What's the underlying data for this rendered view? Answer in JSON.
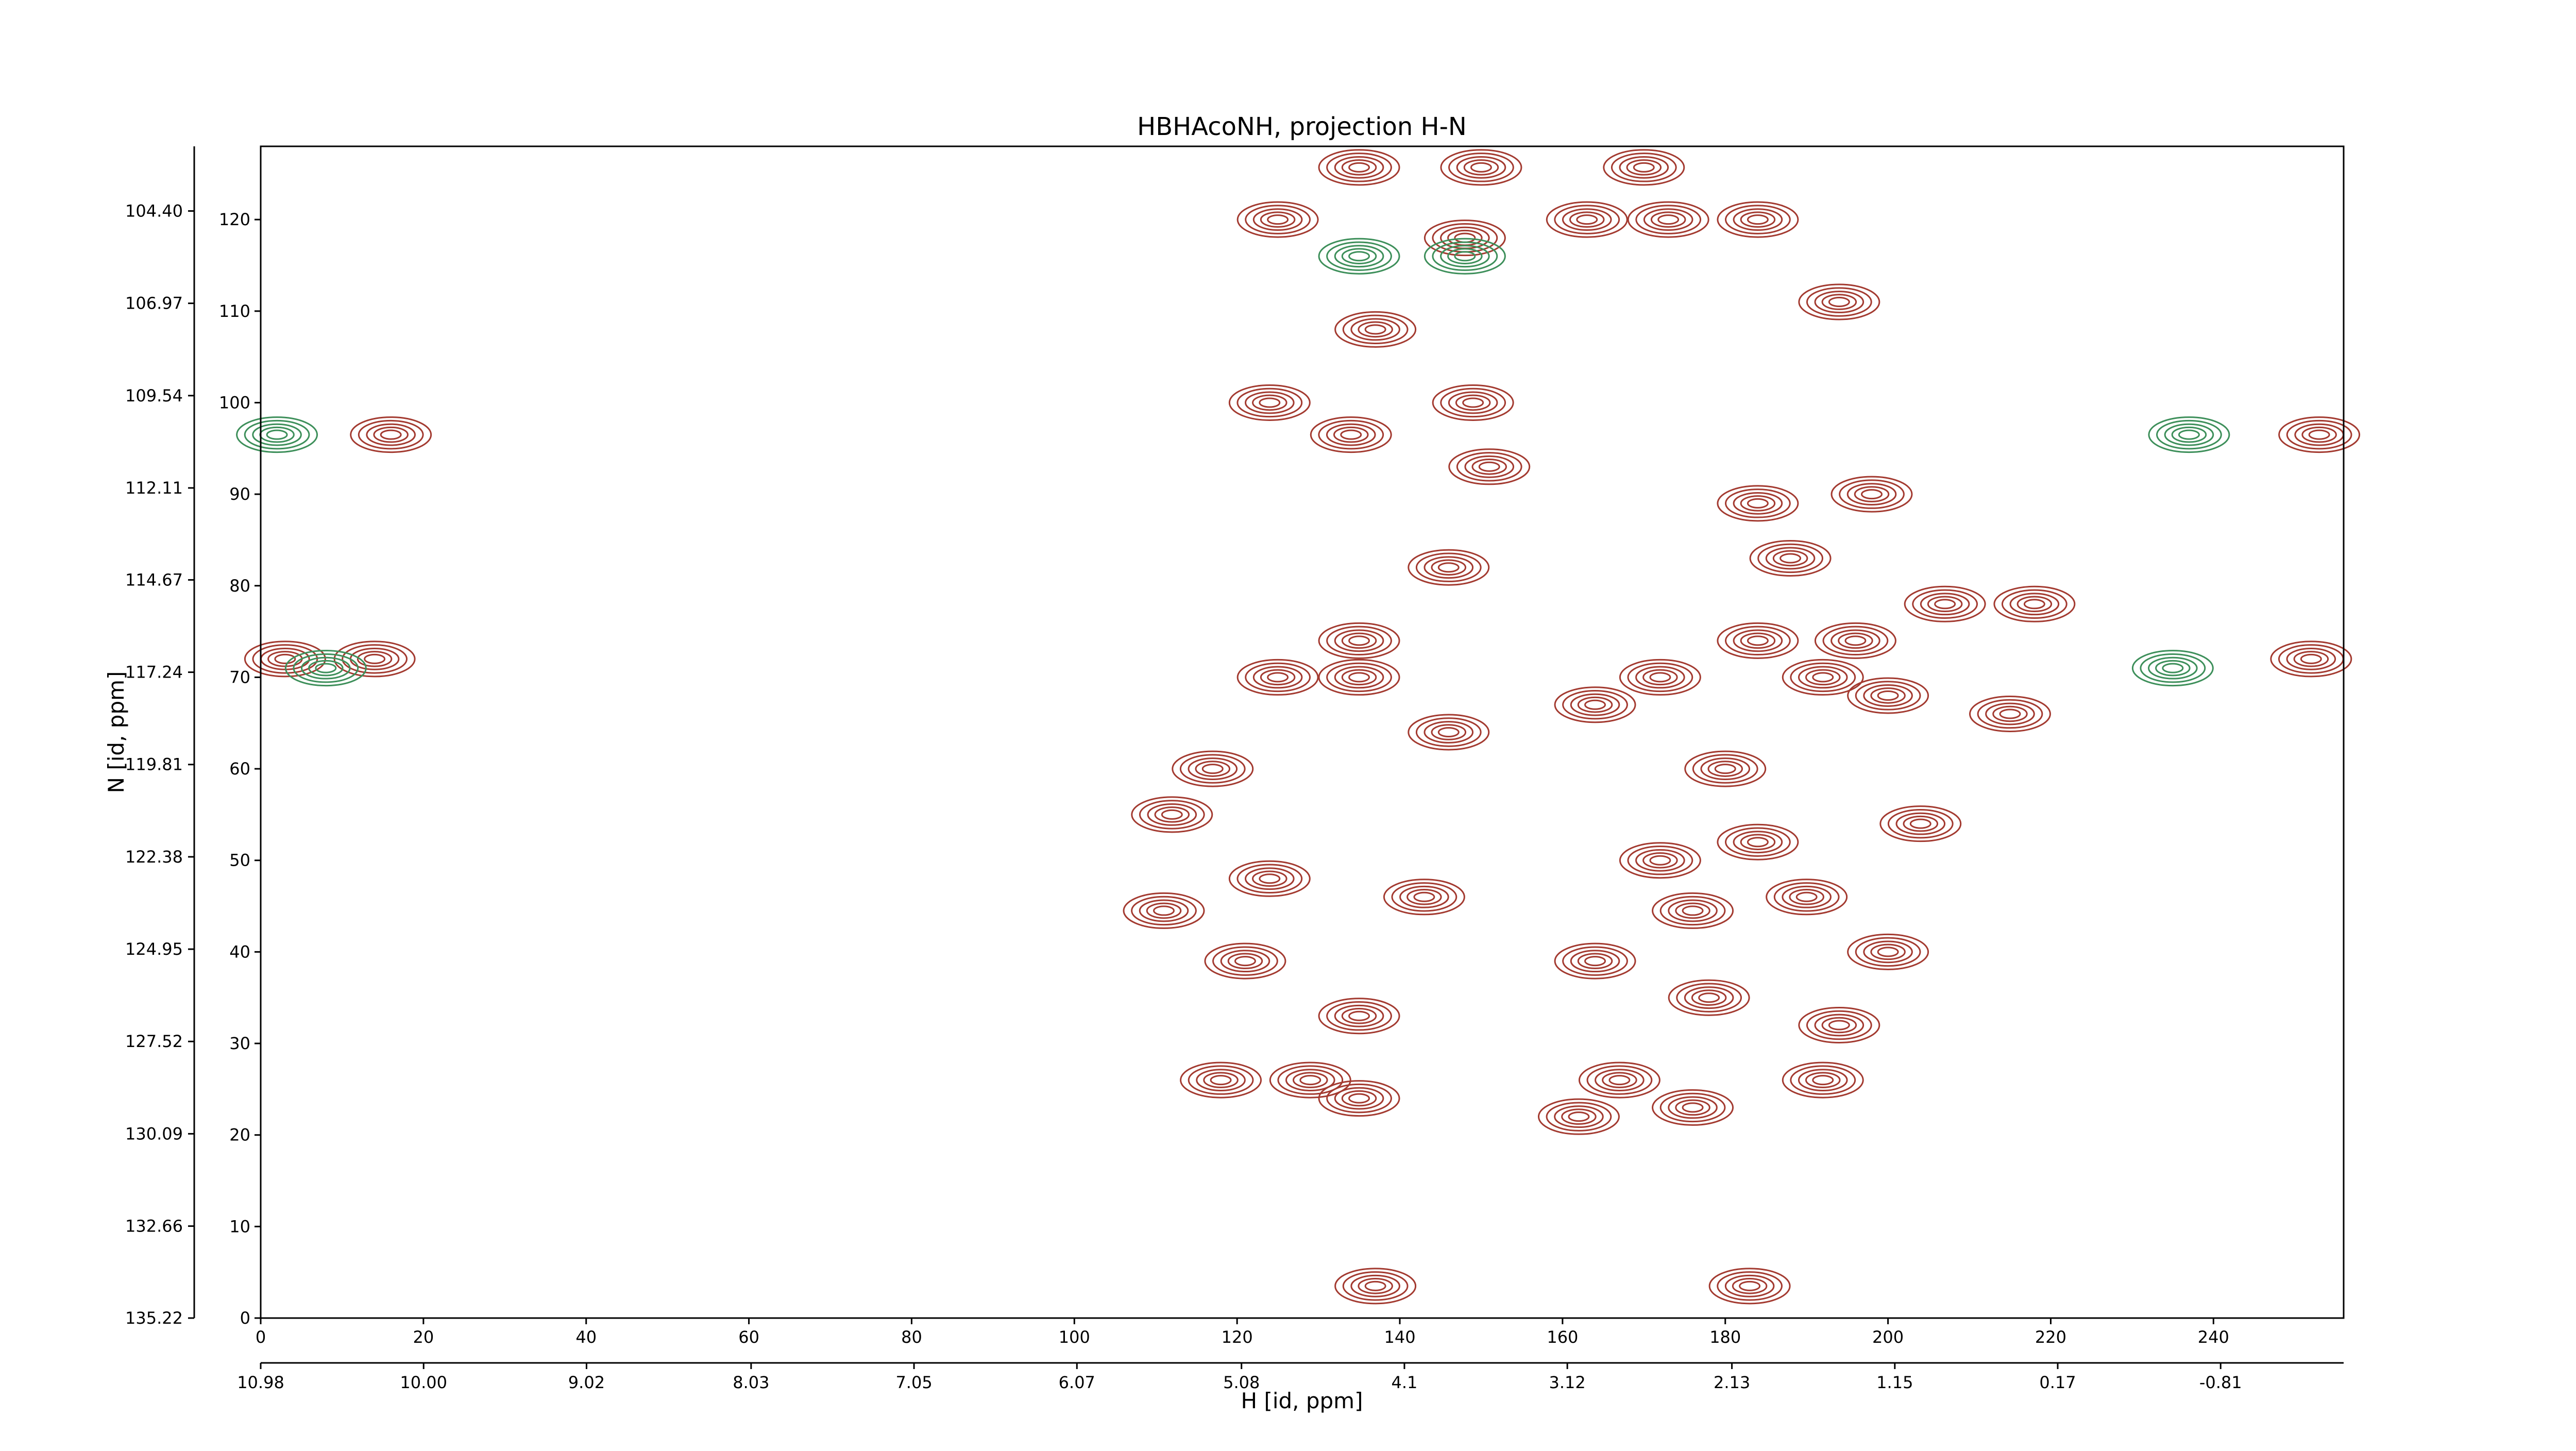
{
  "chart_data": {
    "type": "contour",
    "title": "HBHAcoNH, projection H-N",
    "xlabel": "H [id, ppm]",
    "ylabel": "N [id, ppm]",
    "xlim": [
      0,
      256
    ],
    "ylim": [
      0,
      128
    ],
    "xticks": [
      0,
      20,
      40,
      60,
      80,
      100,
      120,
      140,
      160,
      180,
      200,
      220,
      240
    ],
    "yticks": [
      0,
      10,
      20,
      30,
      40,
      50,
      60,
      70,
      80,
      90,
      100,
      110,
      120
    ],
    "hlim": [
      10.98,
      -1.55
    ],
    "hticks": [
      10.98,
      {
        "value": 10,
        "label": "10.00"
      },
      9.02,
      8.03,
      7.05,
      6.07,
      5.08,
      4.1,
      3.12,
      2.13,
      1.15,
      0.17,
      -0.81
    ],
    "nlim": [
      135.22,
      102.6
    ],
    "nticks": [
      135.22,
      132.66,
      130.09,
      127.52,
      124.95,
      122.38,
      119.81,
      117.24,
      114.67,
      112.11,
      109.54,
      106.97,
      {
        "value": 104.4,
        "label": "104.40"
      }
    ],
    "series": [
      {
        "color": "#a33a30",
        "x": [
          135,
          150,
          170,
          125,
          163,
          173,
          184,
          148,
          137,
          194,
          124,
          149,
          134,
          16,
          253,
          198,
          184,
          151,
          188,
          146,
          207,
          218,
          135,
          184,
          196,
          14,
          3,
          252,
          125,
          135,
          172,
          192,
          200,
          215,
          164,
          146,
          117,
          180,
          112,
          204,
          124,
          184,
          172,
          111,
          176,
          190,
          143,
          121,
          200,
          164,
          178,
          194,
          135,
          118,
          129,
          135,
          167,
          192,
          162,
          176,
          137,
          183
        ],
        "y": [
          125.7,
          125.7,
          125.7,
          120,
          120,
          120,
          120,
          118,
          108,
          111,
          100,
          100,
          96.5,
          96.5,
          96.5,
          90,
          89,
          93,
          83,
          82,
          78,
          78,
          74,
          74,
          74,
          72,
          72,
          72,
          70,
          70,
          70,
          70,
          68,
          66,
          67,
          64,
          60,
          60,
          55,
          54,
          48,
          52,
          50,
          44.5,
          44.5,
          46,
          46,
          39,
          40,
          39,
          35,
          32,
          33,
          26,
          26,
          24,
          26,
          26,
          22,
          23,
          3.5,
          3.5
        ]
      },
      {
        "color": "#3d8f5a",
        "x": [
          2,
          237,
          8,
          235,
          135,
          148
        ],
        "y": [
          96.5,
          96.5,
          71,
          71,
          116,
          116
        ]
      }
    ]
  }
}
